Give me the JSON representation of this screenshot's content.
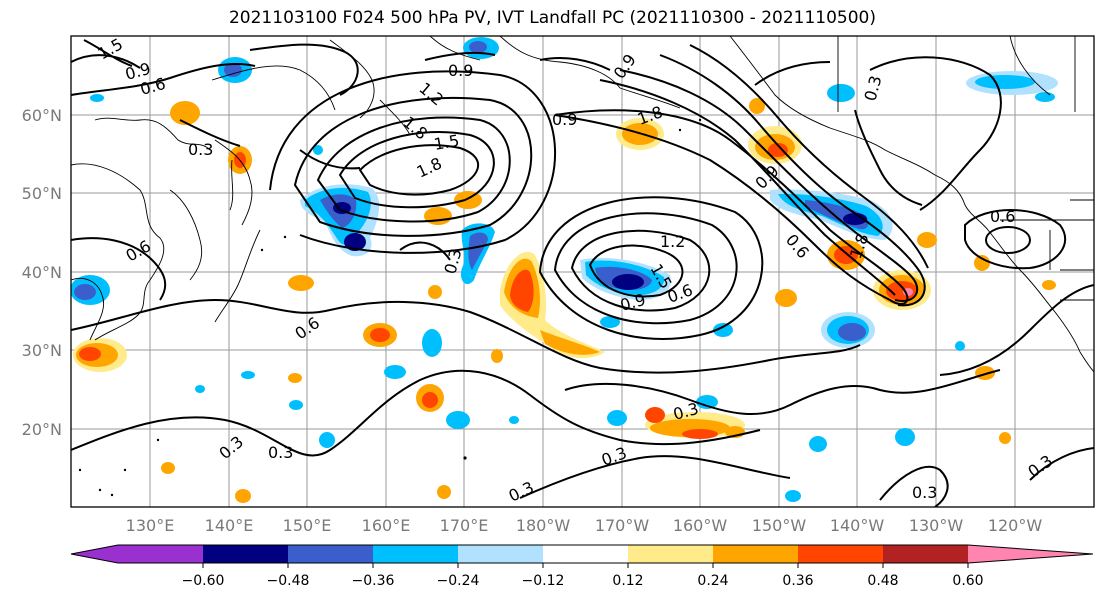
{
  "title": "2021103100 F024 500 hPa PV, IVT Landfall PC (2021110300 - 2021110500)",
  "lon_ticks": [
    "130°E",
    "140°E",
    "150°E",
    "160°E",
    "170°E",
    "180°W",
    "170°W",
    "160°W",
    "150°W",
    "140°W",
    "130°W",
    "120°W"
  ],
  "lat_ticks": [
    "60°N",
    "50°N",
    "40°N",
    "30°N",
    "20°N"
  ],
  "contour_labels": [
    "1.5",
    "0.9",
    "0.6",
    "0.9",
    "1.2",
    "1.8",
    "0.9",
    "0.3",
    "1.5",
    "1.8",
    "0.9",
    "1.8",
    "0.3",
    "0.3",
    "1.2",
    "1.5",
    "0.9",
    "0.6",
    "0.6",
    "0.6",
    "0.6",
    "0.9",
    "1.8",
    "0.3",
    "0.3",
    "0.3",
    "0.3",
    "0.3",
    "0.3",
    "0.6",
    "0.3"
  ],
  "colorbar": {
    "colors": [
      "#9b30d0",
      "#000080",
      "#3a5fcd",
      "#00bfff",
      "#b0e2ff",
      "#ffffff",
      "#ffeb8a",
      "#ffa500",
      "#ff4500",
      "#b22222",
      "#ff85b0"
    ],
    "tick_labels": [
      "−0.60",
      "−0.48",
      "−0.36",
      "−0.24",
      "−0.12",
      "0.12",
      "0.24",
      "0.36",
      "0.48",
      "0.60"
    ]
  }
}
